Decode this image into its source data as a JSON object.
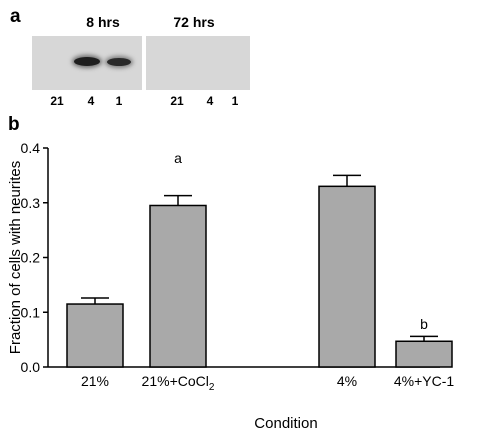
{
  "panel_a": {
    "letter": "a",
    "blots": [
      {
        "title": "8 hrs",
        "lanes": [
          "21",
          "4",
          "1"
        ],
        "band_intensity": [
          0.0,
          1.0,
          0.85
        ]
      },
      {
        "title": "72 hrs",
        "lanes": [
          "21",
          "4",
          "1"
        ],
        "band_intensity": [
          0.0,
          0.0,
          0.0
        ]
      }
    ]
  },
  "chart_data": {
    "type": "bar",
    "panel_letter": "b",
    "categories": [
      "21%",
      "21%+CoCl2",
      "4%",
      "4%+YC-1"
    ],
    "category_labels": [
      {
        "text": "21%",
        "sub": ""
      },
      {
        "text": "21%+CoCl",
        "sub": "2"
      },
      {
        "text": "4%",
        "sub": ""
      },
      {
        "text": "4%+YC-1",
        "sub": ""
      }
    ],
    "values": [
      0.115,
      0.295,
      0.33,
      0.047
    ],
    "errors": [
      0.011,
      0.018,
      0.02,
      0.009
    ],
    "annotations": [
      "",
      "a",
      "",
      "b"
    ],
    "xlabel": "Condition",
    "ylabel": "Fraction of cells with neurites",
    "ylim": [
      0,
      0.4
    ],
    "yticks": [
      "0.0",
      "0.1",
      "0.2",
      "0.3",
      "0.4"
    ],
    "bar_color": "#a9a9a9",
    "grid": false
  }
}
